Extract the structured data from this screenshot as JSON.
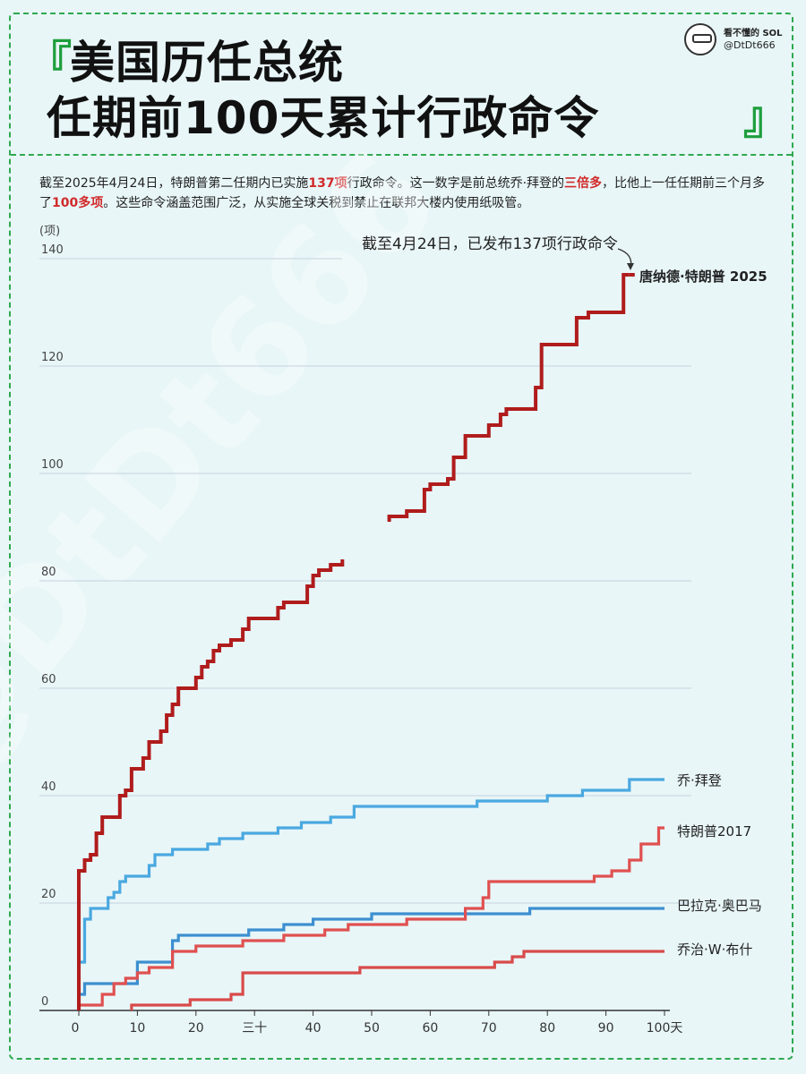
{
  "header": {
    "title_line1": "美国历任总统",
    "title_line2": "任期前100天累计行政命令",
    "bracket_open": "『",
    "bracket_close": "』",
    "brand_name": "看不懂的 SOL",
    "brand_handle": "@DtDt666"
  },
  "intro": {
    "p1": "截至2025年4月24日，特朗普第二任期内已实施",
    "h1": "137项",
    "p2": "行政命令。这一数字是前总统乔·拜登的",
    "h2": "三倍多",
    "p3": "，比他上一任任期前三个月多了",
    "h3": "100多项",
    "p4": "。这些命令涵盖范围广泛，从实施全球关税到禁止在联邦大楼内使用纸吸管。"
  },
  "watermark": "@DtDt666",
  "chart_data": {
    "type": "line",
    "step": true,
    "unit_label": "(项)",
    "annotation": "截至4月24日，已发布137项行政命令",
    "xlim": [
      0,
      100
    ],
    "ylim": [
      0,
      140
    ],
    "x_ticks": [
      0,
      10,
      20,
      30,
      40,
      50,
      60,
      70,
      80,
      90,
      100
    ],
    "x_tick_labels": [
      "0",
      "10",
      "20",
      "三十",
      "40",
      "50",
      "60",
      "70",
      "80",
      "90",
      "100天"
    ],
    "y_ticks": [
      0,
      20,
      40,
      60,
      80,
      100,
      120,
      140
    ],
    "grid": true,
    "series": [
      {
        "name": "唐纳德·特朗普 2025",
        "color": "#b01c1c",
        "label_bold": true,
        "segments": [
          [
            [
              0,
              0
            ],
            [
              0,
              26
            ],
            [
              1,
              26
            ],
            [
              1,
              28
            ],
            [
              2,
              28
            ],
            [
              2,
              29
            ],
            [
              3,
              29
            ],
            [
              3,
              33
            ],
            [
              4,
              33
            ],
            [
              4,
              36
            ],
            [
              7,
              36
            ],
            [
              7,
              40
            ],
            [
              8,
              40
            ],
            [
              8,
              41
            ],
            [
              9,
              41
            ],
            [
              9,
              45
            ],
            [
              11,
              45
            ],
            [
              11,
              47
            ],
            [
              12,
              47
            ],
            [
              12,
              50
            ],
            [
              14,
              50
            ],
            [
              14,
              52
            ],
            [
              15,
              52
            ],
            [
              15,
              55
            ],
            [
              16,
              55
            ],
            [
              16,
              57
            ],
            [
              17,
              57
            ],
            [
              17,
              60
            ],
            [
              20,
              60
            ],
            [
              20,
              62
            ],
            [
              21,
              62
            ],
            [
              21,
              64
            ],
            [
              22,
              64
            ],
            [
              22,
              65
            ],
            [
              23,
              65
            ],
            [
              23,
              67
            ],
            [
              24,
              67
            ],
            [
              24,
              68
            ],
            [
              26,
              68
            ],
            [
              26,
              69
            ],
            [
              28,
              69
            ],
            [
              28,
              71
            ],
            [
              29,
              71
            ],
            [
              29,
              73
            ],
            [
              34,
              73
            ],
            [
              34,
              75
            ],
            [
              35,
              75
            ],
            [
              35,
              76
            ],
            [
              39,
              76
            ],
            [
              39,
              79
            ],
            [
              40,
              79
            ],
            [
              40,
              81
            ],
            [
              41,
              81
            ],
            [
              41,
              82
            ],
            [
              43,
              82
            ],
            [
              43,
              83
            ],
            [
              45,
              83
            ],
            [
              45,
              84
            ]
          ],
          [
            [
              53,
              91
            ],
            [
              53,
              92
            ],
            [
              56,
              92
            ],
            [
              56,
              93
            ],
            [
              59,
              93
            ],
            [
              59,
              97
            ],
            [
              60,
              97
            ],
            [
              60,
              98
            ],
            [
              63,
              98
            ],
            [
              63,
              99
            ],
            [
              64,
              99
            ],
            [
              64,
              103
            ],
            [
              66,
              103
            ],
            [
              66,
              107
            ],
            [
              70,
              107
            ],
            [
              70,
              109
            ],
            [
              72,
              109
            ],
            [
              72,
              111
            ],
            [
              73,
              111
            ],
            [
              73,
              112
            ],
            [
              78,
              112
            ],
            [
              78,
              116
            ],
            [
              79,
              116
            ],
            [
              79,
              124
            ],
            [
              85,
              124
            ],
            [
              85,
              129
            ],
            [
              87,
              129
            ],
            [
              87,
              130
            ],
            [
              93,
              130
            ],
            [
              93,
              137
            ],
            [
              94,
              137
            ]
          ]
        ]
      },
      {
        "name": "乔·拜登",
        "color": "#4aa8e0",
        "label_bold": false,
        "segments": [
          [
            [
              0,
              0
            ],
            [
              0,
              9
            ],
            [
              1,
              9
            ],
            [
              1,
              17
            ],
            [
              2,
              17
            ],
            [
              2,
              19
            ],
            [
              5,
              19
            ],
            [
              5,
              21
            ],
            [
              6,
              21
            ],
            [
              6,
              22
            ],
            [
              7,
              22
            ],
            [
              7,
              24
            ],
            [
              8,
              24
            ],
            [
              8,
              25
            ],
            [
              12,
              25
            ],
            [
              12,
              27
            ],
            [
              13,
              27
            ],
            [
              13,
              29
            ],
            [
              16,
              29
            ],
            [
              16,
              30
            ],
            [
              22,
              30
            ],
            [
              22,
              31
            ],
            [
              24,
              31
            ],
            [
              24,
              32
            ],
            [
              28,
              32
            ],
            [
              28,
              33
            ],
            [
              34,
              33
            ],
            [
              34,
              34
            ],
            [
              38,
              34
            ],
            [
              38,
              35
            ],
            [
              43,
              35
            ],
            [
              43,
              36
            ],
            [
              47,
              36
            ],
            [
              47,
              38
            ],
            [
              68,
              38
            ],
            [
              68,
              39
            ],
            [
              80,
              39
            ],
            [
              80,
              40
            ],
            [
              86,
              40
            ],
            [
              86,
              41
            ],
            [
              94,
              41
            ],
            [
              94,
              43
            ],
            [
              100,
              43
            ]
          ]
        ]
      },
      {
        "name": "特朗普2017",
        "color": "#e05050",
        "label_bold": false,
        "segments": [
          [
            [
              0,
              0
            ],
            [
              0,
              1
            ],
            [
              4,
              1
            ],
            [
              4,
              3
            ],
            [
              6,
              3
            ],
            [
              6,
              5
            ],
            [
              8,
              5
            ],
            [
              8,
              6
            ],
            [
              10,
              6
            ],
            [
              10,
              7
            ],
            [
              12,
              7
            ],
            [
              12,
              8
            ],
            [
              16,
              8
            ],
            [
              16,
              11
            ],
            [
              20,
              11
            ],
            [
              20,
              12
            ],
            [
              28,
              12
            ],
            [
              28,
              13
            ],
            [
              35,
              13
            ],
            [
              35,
              14
            ],
            [
              42,
              14
            ],
            [
              42,
              15
            ],
            [
              46,
              15
            ],
            [
              46,
              16
            ],
            [
              56,
              16
            ],
            [
              56,
              17
            ],
            [
              66,
              17
            ],
            [
              66,
              19
            ],
            [
              69,
              19
            ],
            [
              69,
              21
            ],
            [
              70,
              21
            ],
            [
              70,
              24
            ],
            [
              88,
              24
            ],
            [
              88,
              25
            ],
            [
              91,
              25
            ],
            [
              91,
              26
            ],
            [
              94,
              26
            ],
            [
              94,
              28
            ],
            [
              96,
              28
            ],
            [
              96,
              31
            ],
            [
              99,
              31
            ],
            [
              99,
              34
            ],
            [
              100,
              34
            ]
          ]
        ]
      },
      {
        "name": "巴拉克·奥巴马",
        "color": "#3d8fd0",
        "label_bold": false,
        "segments": [
          [
            [
              0,
              0
            ],
            [
              0,
              3
            ],
            [
              1,
              3
            ],
            [
              1,
              5
            ],
            [
              10,
              5
            ],
            [
              10,
              9
            ],
            [
              16,
              9
            ],
            [
              16,
              13
            ],
            [
              17,
              13
            ],
            [
              17,
              14
            ],
            [
              29,
              14
            ],
            [
              29,
              15
            ],
            [
              35,
              15
            ],
            [
              35,
              16
            ],
            [
              40,
              16
            ],
            [
              40,
              17
            ],
            [
              50,
              17
            ],
            [
              50,
              18
            ],
            [
              77,
              18
            ],
            [
              77,
              19
            ],
            [
              100,
              19
            ]
          ]
        ]
      },
      {
        "name": "乔治·W·布什",
        "color": "#d94a4a",
        "label_bold": false,
        "segments": [
          [
            [
              9,
              0
            ],
            [
              9,
              1
            ],
            [
              19,
              1
            ],
            [
              19,
              2
            ],
            [
              26,
              2
            ],
            [
              26,
              3
            ],
            [
              28,
              3
            ],
            [
              28,
              7
            ],
            [
              48,
              7
            ],
            [
              48,
              8
            ],
            [
              71,
              8
            ],
            [
              71,
              9
            ],
            [
              74,
              9
            ],
            [
              74,
              10
            ],
            [
              76,
              10
            ],
            [
              76,
              11
            ],
            [
              100,
              11
            ]
          ]
        ]
      }
    ]
  }
}
